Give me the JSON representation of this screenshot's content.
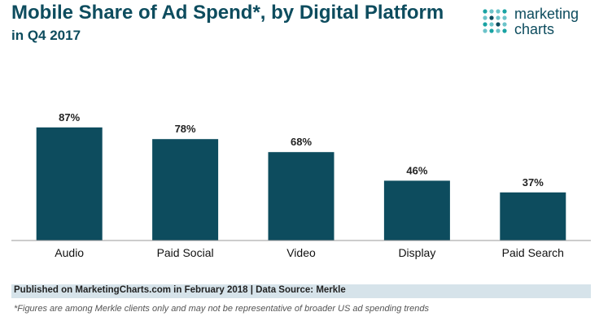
{
  "header": {
    "title": "Mobile Share of Ad Spend*, by Digital Platform",
    "subtitle": "in Q4 2017"
  },
  "logo": {
    "line1": "marketing",
    "line2": "charts",
    "dot_colors": [
      "#1aa3a3",
      "#6cc3c9",
      "#0d4c5e"
    ]
  },
  "chart_data": {
    "type": "bar",
    "categories": [
      "Audio",
      "Paid Social",
      "Video",
      "Display",
      "Paid Search"
    ],
    "values": [
      87,
      78,
      68,
      46,
      37
    ],
    "value_labels": [
      "87%",
      "78%",
      "68%",
      "46%",
      "37%"
    ],
    "title": "Mobile Share of Ad Spend*, by Digital Platform",
    "subtitle": "in Q4 2017",
    "xlabel": "",
    "ylabel": "",
    "ylim": [
      0,
      100
    ],
    "grid": false,
    "bar_color": "#0d4c5e"
  },
  "footer": {
    "source": "Published on MarketingCharts.com in February 2018 | Data Source: Merkle",
    "note": "*Figures are among Merkle clients only and may not be representative of broader US ad spending trends"
  }
}
